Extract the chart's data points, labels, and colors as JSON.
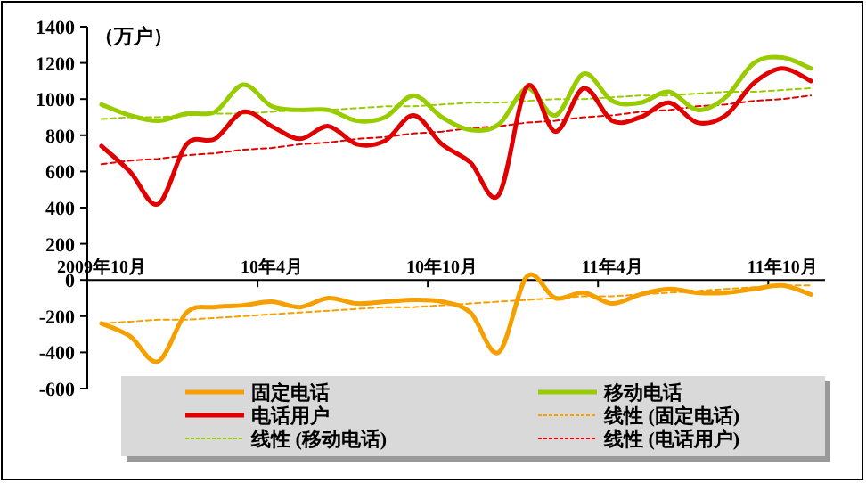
{
  "chart_data": {
    "type": "line",
    "ylabel": "（万户）",
    "categories": [
      "2009年10月",
      null,
      null,
      null,
      null,
      null,
      "10年4月",
      null,
      null,
      null,
      null,
      null,
      "10年10月",
      null,
      null,
      null,
      null,
      null,
      "11年4月",
      null,
      null,
      null,
      null,
      null,
      "11年10月",
      null
    ],
    "ylim": [
      -600,
      1400
    ],
    "yticks": [
      -600,
      -400,
      -200,
      0,
      200,
      400,
      600,
      800,
      1000,
      1200,
      1400
    ],
    "grid": false,
    "legend": "bottom",
    "marker": "none",
    "series": [
      {
        "name": "固定电话",
        "line_style": "solid",
        "color": "#f5a000",
        "values": [
          -240,
          -310,
          -450,
          -180,
          -150,
          -140,
          -120,
          -150,
          -100,
          -130,
          -120,
          -110,
          -120,
          -180,
          -400,
          20,
          -100,
          -70,
          -130,
          -80,
          -50,
          -70,
          -70,
          -50,
          -30,
          -80
        ]
      },
      {
        "name": "移动电话",
        "line_style": "solid",
        "color": "#99cc00",
        "values": [
          970,
          910,
          880,
          920,
          930,
          1080,
          960,
          940,
          940,
          880,
          900,
          1020,
          900,
          830,
          860,
          1060,
          910,
          1140,
          990,
          980,
          1040,
          940,
          1010,
          1200,
          1230,
          1170
        ]
      },
      {
        "name": "电话用户",
        "line_style": "solid",
        "color": "#e00000",
        "values": [
          740,
          600,
          420,
          750,
          780,
          930,
          850,
          780,
          850,
          750,
          770,
          910,
          750,
          650,
          470,
          1070,
          820,
          1060,
          880,
          900,
          980,
          870,
          910,
          1090,
          1170,
          1100
        ]
      },
      {
        "name": "线性 (固定电话)",
        "line_style": "dashed",
        "color": "#f5a000",
        "values": [
          -240,
          -230,
          -220,
          -220,
          -210,
          -200,
          -190,
          -180,
          -170,
          -160,
          -150,
          -150,
          -140,
          -130,
          -120,
          -110,
          -100,
          -90,
          -90,
          -80,
          -70,
          -60,
          -50,
          -40,
          -30,
          -30
        ]
      },
      {
        "name": "线性 (移动电话)",
        "line_style": "dashed",
        "color": "#99cc00",
        "values": [
          890,
          900,
          900,
          910,
          920,
          920,
          930,
          940,
          940,
          950,
          960,
          960,
          970,
          980,
          980,
          990,
          1000,
          1000,
          1010,
          1020,
          1020,
          1030,
          1040,
          1040,
          1050,
          1060
        ]
      },
      {
        "name": "线性 (电话用户)",
        "line_style": "dashed",
        "color": "#e00000",
        "values": [
          640,
          660,
          670,
          690,
          700,
          720,
          730,
          750,
          760,
          780,
          790,
          810,
          820,
          840,
          850,
          870,
          880,
          900,
          910,
          930,
          940,
          960,
          970,
          990,
          1000,
          1020
        ]
      }
    ]
  }
}
